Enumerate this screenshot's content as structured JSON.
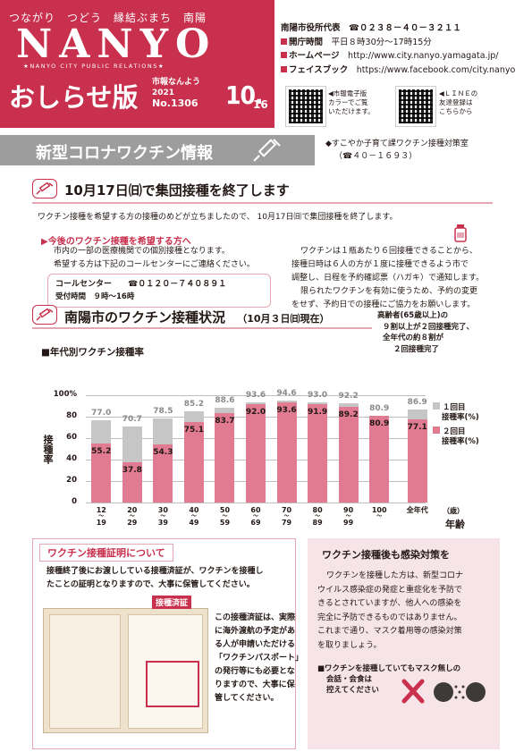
{
  "header": {
    "tagline": "つながり　つどう　縁結ぶまち　南陽",
    "logo": "NANYO",
    "logo_sub": "★NANYO CITY PUBLIC RELATIONS★",
    "title": "おしらせ版",
    "meta_name": "市報なんよう",
    "year": "2021",
    "issue": "No.1306",
    "date_month": "10.",
    "date_day": "16",
    "brand_color": "#c8304d"
  },
  "contact": {
    "rep": "南陽市役所代表",
    "rep_phone": "☎０２３８－４０－３２１１",
    "hours_label": "開庁時間",
    "hours": "平日８時30分～17時15分",
    "hp_label": "ホームページ",
    "hp": "http://www.city.nanyo.yamagata.jp/",
    "fb_label": "フェイスブック",
    "fb": "https://www.facebook.com/city.nanyo",
    "qr1_note": [
      "◀市報電子版",
      "カラーでご覧",
      "いただけます。"
    ],
    "qr2_note": [
      "◀ＬＩＮＥの",
      "友達登録は",
      "こちらから"
    ]
  },
  "banner": {
    "title": "新型コロナワクチン情報",
    "dept": "◆すこやか子育て課ワクチン接種対策室",
    "dept_phone": "（☎４０－１６９３）"
  },
  "section1": {
    "heading": "10月17日㈰で集団接種を終了します",
    "intro": "ワクチン接種を希望する方の接種のめどが立ちましたので、 10月17日㈰で集団接種を終了します。",
    "sub_heading": "▶今後のワクチン接種を希望する方へ",
    "left_text": [
      "市内の一部の医療機関での個別接種となります。",
      "希望する方は下記のコールセンターにご連絡ください。"
    ],
    "call_label": "コールセンター",
    "call_phone": "☎０１２０－７４０８９１",
    "call_hours": "受付時間　９時～16時",
    "right_text": [
      "ワクチンは１瓶あたり６回接種できることから、",
      "接種日時は６人の方が１度に接種できるよう市で",
      "調整し、日程を予約確認票（ハガキ）で通知します。",
      "限られたワクチンを有効に使うため、予約の変更",
      "をせず、予約日での接種にご協力をお願いします。"
    ]
  },
  "section2": {
    "heading": "南陽市のワクチン接種状況",
    "heading_date": "（10月３日㈰現在）",
    "note": [
      "高齢者(65歳以上)の",
      "９割以上が２回接種完了、",
      "全年代の約８割が",
      "２回接種完了"
    ]
  },
  "chart_data": {
    "type": "bar",
    "title": "■年代別ワクチン接種率",
    "ylabel": "接種率",
    "xlabel_unit": "（歳）",
    "xlabel": "年齢",
    "ylim": [
      0,
      100
    ],
    "yticks": [
      "100%",
      "80",
      "60",
      "40",
      "20",
      "0"
    ],
    "categories": [
      [
        "12",
        "～",
        "19"
      ],
      [
        "20",
        "～",
        "29"
      ],
      [
        "30",
        "～",
        "39"
      ],
      [
        "40",
        "～",
        "49"
      ],
      [
        "50",
        "～",
        "59"
      ],
      [
        "60",
        "～",
        "69"
      ],
      [
        "70",
        "～",
        "79"
      ],
      [
        "80",
        "～",
        "89"
      ],
      [
        "90",
        "～",
        "99"
      ],
      [
        "100",
        "～"
      ],
      [
        "全年代"
      ]
    ],
    "series": [
      {
        "name": "１回目接種率(%)",
        "color": "#c6c6c6",
        "values": [
          77.0,
          70.7,
          78.5,
          85.2,
          88.6,
          93.6,
          94.6,
          93.0,
          92.2,
          80.9,
          86.9
        ]
      },
      {
        "name": "２回目接種率(%)",
        "color": "#e07b91",
        "values": [
          55.2,
          37.8,
          54.3,
          75.1,
          83.7,
          92.0,
          93.6,
          91.9,
          89.2,
          80.9,
          77.1
        ]
      }
    ],
    "labels1": [
      "77.0",
      "70.7",
      "78.5",
      "85.2",
      "88.6",
      "93.6",
      "94.6",
      "93.0",
      "92.2",
      "80.9",
      "86.9"
    ],
    "labels2": [
      "55.2",
      "37.8",
      "54.3",
      "75.1",
      "83.7",
      "92.0",
      "93.6",
      "91.9",
      "89.2",
      "80.9",
      "77.1"
    ],
    "legend": [
      "１回目",
      "接種率(%)",
      "２回目",
      "接種率(%)"
    ]
  },
  "cert": {
    "tag": "ワクチン接種証明について",
    "text": [
      "接種終了後にお渡ししている接種済証が、ワクチンを接種し",
      "たことの証明となりますので、大事に保管してください。"
    ],
    "img_tag": "接種済証",
    "side_text": [
      "この接種済証は、実際",
      "に海外渡航の予定があ",
      "る人が申請いただける",
      "「ワクチンパスポート」",
      "の発行等にも必要とな",
      "りますので、大事に保",
      "管してください。"
    ]
  },
  "after": {
    "title": "ワクチン接種後も感染対策を",
    "text": [
      "ワクチンを接種した方は、新型コロナ",
      "ウイルス感染症の発症と重症化を予防で",
      "きるとされていますが、他人への感染を",
      "完全に予防できるものではありません。",
      "これまで通り、マスク着用等の感染対策",
      "を取りましょう。"
    ],
    "bullet": [
      "■ワクチンを接種していてもマスク無しの",
      "会話・会食は",
      "控えてください"
    ]
  }
}
